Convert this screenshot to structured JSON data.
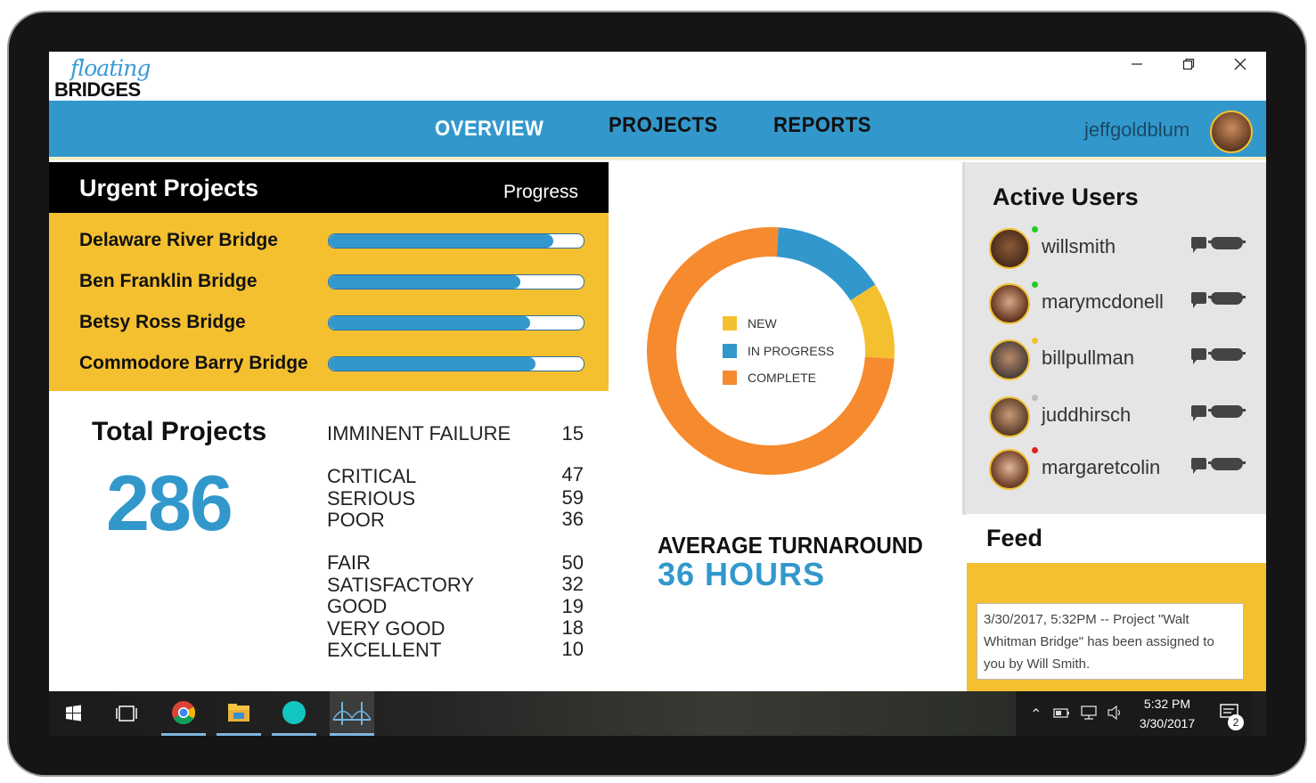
{
  "app": {
    "logo_line1": "floating",
    "logo_line2": "BRIDGES",
    "window_controls": [
      "minimize-icon",
      "restore-icon",
      "close-icon"
    ]
  },
  "nav": {
    "items": [
      {
        "label": "OVERVIEW",
        "active": true
      },
      {
        "label": "PROJECTS",
        "active": false
      },
      {
        "label": "REPORTS",
        "active": false
      }
    ],
    "username": "jeffgoldblum"
  },
  "urgent": {
    "title": "Urgent Projects",
    "progress_label": "Progress",
    "projects": [
      {
        "name": "Delaware River Bridge",
        "progress": 0.88
      },
      {
        "name": "Ben Franklin Bridge",
        "progress": 0.75
      },
      {
        "name": "Betsy Ross Bridge",
        "progress": 0.79
      },
      {
        "name": "Commodore Barry Bridge",
        "progress": 0.81
      }
    ]
  },
  "totals": {
    "title": "Total Projects",
    "total": "286",
    "categories": [
      {
        "label": "IMMINENT FAILURE",
        "count": "15"
      },
      {
        "label": "CRITICAL",
        "count": "47"
      },
      {
        "label": "SERIOUS",
        "count": "59"
      },
      {
        "label": "POOR",
        "count": "36"
      },
      {
        "label": "FAIR",
        "count": "50"
      },
      {
        "label": "SATISFACTORY",
        "count": "32"
      },
      {
        "label": "GOOD",
        "count": "19"
      },
      {
        "label": "VERY GOOD",
        "count": "18"
      },
      {
        "label": "EXCELLENT",
        "count": "10"
      }
    ]
  },
  "status_chart": {
    "type": "pie",
    "legend": [
      {
        "label": "NEW",
        "color": "#f4c030"
      },
      {
        "label": "IN PROGRESS",
        "color": "#3298cc"
      },
      {
        "label": "COMPLETE",
        "color": "#f68a2e"
      }
    ],
    "values": {
      "NEW": 0.1,
      "IN PROGRESS": 0.15,
      "COMPLETE": 0.75
    }
  },
  "turnaround": {
    "label": "AVERAGE TURNAROUND",
    "value": "36 HOURS"
  },
  "active_users": {
    "title": "Active Users",
    "users": [
      {
        "name": "willsmith",
        "status_color": "#22cc22",
        "avatar": "person-avatar"
      },
      {
        "name": "marymcdonell",
        "status_color": "#22cc22",
        "avatar": "person-avatar"
      },
      {
        "name": "billpullman",
        "status_color": "#f1c232",
        "avatar": "person-avatar"
      },
      {
        "name": "juddhirsch",
        "status_color": "#bbbbbb",
        "avatar": "person-avatar"
      },
      {
        "name": "margaretcolin",
        "status_color": "#e02020",
        "avatar": "person-avatar"
      }
    ]
  },
  "feed": {
    "title": "Feed",
    "entries": [
      {
        "text": "3/30/2017, 5:32PM -- Project \"Walt Whitman Bridge\" has been assigned to you by Will Smith."
      }
    ]
  },
  "taskbar": {
    "time": "5:32 PM",
    "date": "3/30/2017",
    "notifications": "2",
    "icons": [
      "windows-start-icon",
      "task-view-icon",
      "chrome-icon",
      "file-explorer-icon",
      "teal-app-icon",
      "bridge-app-icon"
    ]
  },
  "chart_data": {
    "type": "pie",
    "categories": [
      "NEW",
      "IN PROGRESS",
      "COMPLETE"
    ],
    "values": [
      10,
      15,
      75
    ],
    "colors": [
      "#f4c030",
      "#3298cc",
      "#f68a2e"
    ],
    "legend_position": "center"
  }
}
